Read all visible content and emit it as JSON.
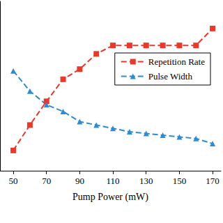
{
  "chart_data": {
    "type": "line",
    "x_label": "Pump Power (mW)",
    "x": [
      50,
      60,
      70,
      80,
      90,
      100,
      110,
      120,
      130,
      140,
      150,
      160,
      170
    ],
    "series": [
      {
        "name": "Repetition Rate",
        "color": "#e8392b",
        "marker": "square",
        "line_style": "dashed",
        "values": [
          12,
          27,
          41,
          54,
          60,
          69,
          74,
          74,
          74,
          74,
          74,
          74,
          84
        ]
      },
      {
        "name": "Pulse Width",
        "color": "#2e8bd0",
        "marker": "triangle",
        "line_style": "dashed",
        "values": [
          59,
          47,
          39,
          35,
          29,
          27,
          25,
          23,
          22,
          21,
          20,
          19,
          16
        ]
      }
    ],
    "xlim": [
      42,
      175
    ],
    "xticks": [
      50,
      70,
      90,
      110,
      130,
      150,
      170
    ],
    "ylim": [
      0,
      100
    ],
    "legend": "upper right",
    "tick_labels": "x",
    "grid": false
  }
}
